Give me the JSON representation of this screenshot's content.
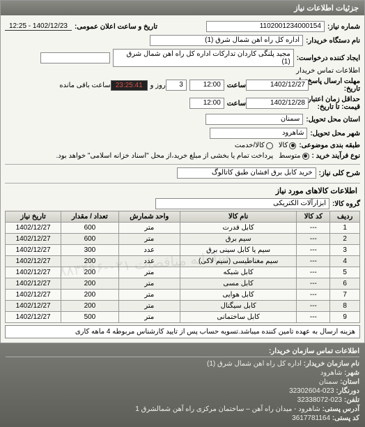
{
  "header": {
    "title": "جزئیات اطلاعات نیاز"
  },
  "info": {
    "number_label": "شماره نیاز:",
    "number_value": "1102001234000154",
    "announce_label": "تاریخ و ساعت اعلان عمومی:",
    "announce_value": "1402/12/23 - 12:25",
    "buyer_device_label": "نام دستگاه خریدار:",
    "buyer_device_value": "اداره کل راه اهن شمال شرق (1)",
    "requester_label": "ایجاد کننده درخواست:",
    "requester_value": "مجید پلنگی کاردان تدارکات اداره کل راه اهن شمال شرق (1)",
    "buyer_contact_label": "اطلاعات تماس خریدار",
    "deadline_send_label": "مهلت ارسال پاسخ:",
    "deadline_send_word_ta": "تا",
    "deadline_send_word_tarikh": "تاریخ:",
    "deadline_send_date": "1402/12/27",
    "deadline_send_time_label": "ساعت",
    "deadline_send_time": "12:00",
    "deadline_remain_prefix": "روز و",
    "deadline_remain_days": "3",
    "deadline_remain_time": "23:25:41",
    "deadline_remain_suffix": "ساعت باقی مانده",
    "price_valid_label": "حداقل زمان اعتبار",
    "price_valid_label2": "قیمت: تا تاریخ:",
    "price_valid_date": "1402/12/28",
    "price_valid_time_label": "ساعت",
    "price_valid_time": "12:00",
    "province_label": "استان محل تحویل:",
    "province_value": "سمنان",
    "city_label": "شهر محل تحویل:",
    "city_value": "شاهرود",
    "group_label": "طبقه بندی موضوعی:",
    "group_options": {
      "kala": "کالا",
      "khadamat": "کالا/خدمت",
      "selected": "kala"
    },
    "purchase_type_label": "نوع فرآیند خرید :",
    "purchase_options": {
      "motavaset": "متوسط",
      "selected": "motavaset"
    },
    "purchase_note": "پرداخت تمام یا بخشی از مبلغ خرید،از محل \"اسناد خزانه اسلامی\" خواهد بود.",
    "main_desc_label": "شرح کلی نیاز:",
    "main_desc_value": "خرید کابل برق افشان طبق کاتالوگ"
  },
  "goods_section": {
    "title": "اطلاعات کالاهای مورد نیاز",
    "group_label": "گروه کالا:",
    "group_value": "ابزارآلات الکتریکی",
    "columns": {
      "row": "ردیف",
      "code": "کد کالا",
      "name": "نام کالا",
      "unit": "واحد شمارش",
      "qty": "تعداد / مقدار",
      "date": "تاریخ نیاز"
    },
    "rows": [
      {
        "n": "1",
        "code": "---",
        "name": "کابل قدرت",
        "unit": "متر",
        "qty": "600",
        "date": "1402/12/27"
      },
      {
        "n": "2",
        "code": "---",
        "name": "سیم برق",
        "unit": "متر",
        "qty": "600",
        "date": "1402/12/27"
      },
      {
        "n": "3",
        "code": "---",
        "name": "سیم یا کابل سینی برق",
        "unit": "عدد",
        "qty": "300",
        "date": "1402/12/27"
      },
      {
        "n": "4",
        "code": "---",
        "name": "سیم مغناطیسی (سیم لاکی)",
        "unit": "عدد",
        "qty": "200",
        "date": "1402/12/27"
      },
      {
        "n": "5",
        "code": "---",
        "name": "کابل شبکه",
        "unit": "متر",
        "qty": "200",
        "date": "1402/12/27"
      },
      {
        "n": "6",
        "code": "---",
        "name": "کابل مسی",
        "unit": "متر",
        "qty": "200",
        "date": "1402/12/27"
      },
      {
        "n": "7",
        "code": "---",
        "name": "کابل هوایی",
        "unit": "متر",
        "qty": "200",
        "date": "1402/12/27"
      },
      {
        "n": "8",
        "code": "---",
        "name": "کابل سیگنال",
        "unit": "متر",
        "qty": "200",
        "date": "1402/12/27"
      },
      {
        "n": "9",
        "code": "---",
        "name": "کابل ساختمانی",
        "unit": "متر",
        "qty": "500",
        "date": "1402/12/27"
      }
    ],
    "note": "هزینه ارسال به عهده تامین کننده میباشد.تسویه حساب پس از تایید کارشناس مربوطه 4 ماهه کاری",
    "watermark": "سامانه مناقصات ۰۲۱-۸۸۳۴۹۶"
  },
  "footer": {
    "title": "اطلاعات تماس سازمان خریدار:",
    "org_label": "نام سازمان خریدار:",
    "org_value": "اداره کل راه اهن شمال شرق (1)",
    "city_label": "شهر:",
    "city_value": "شاهرود",
    "province_label": "استان:",
    "province_value": "سمنان",
    "phone_label": "دورنگار:",
    "phone_value": "023-32302604",
    "fax_label": "تلفن:",
    "fax_value": "023-32338072",
    "address_label": "آدرس پستی:",
    "address_value": "شاهرود - میدان راه آهن – ساختمان مرکزی راه آهن شمالشرق 1",
    "postal_label": "کد پستی:",
    "postal_value": "3617781164"
  }
}
